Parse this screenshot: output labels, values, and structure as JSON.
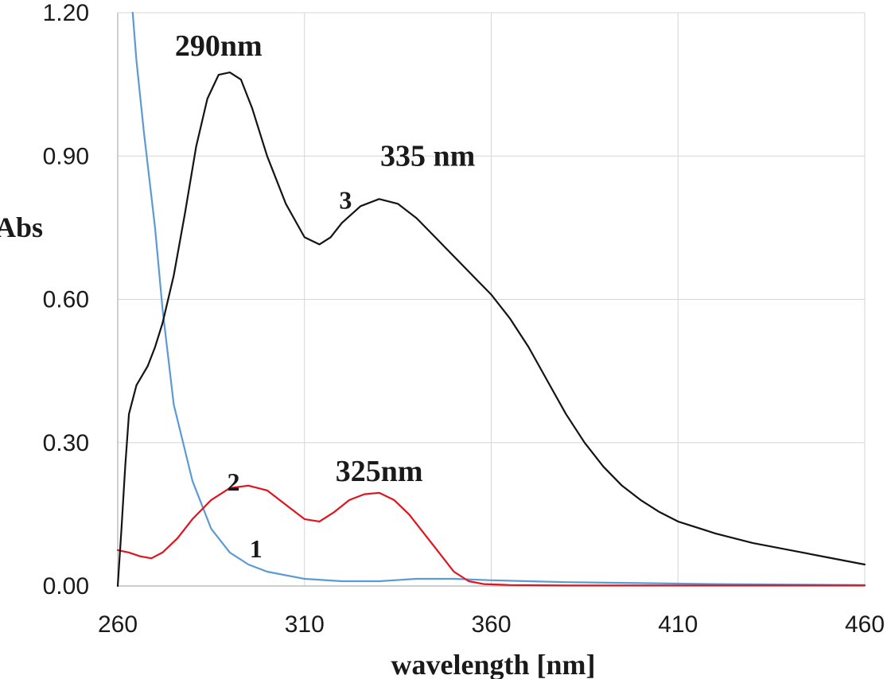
{
  "chart_data": {
    "type": "line",
    "title": "",
    "xlabel": "wavelength [nm]",
    "ylabel": "Abs",
    "xlim": [
      260,
      460
    ],
    "ylim": [
      0,
      1.2
    ],
    "x_ticks": [
      "260",
      "310",
      "360",
      "410",
      "460"
    ],
    "y_ticks": [
      "0.00",
      "0.30",
      "0.60",
      "0.90",
      "1.20"
    ],
    "grid": true,
    "colors": {
      "s1": "#5b9bd5",
      "s2": "#e0141e",
      "s3": "#141414"
    },
    "series": [
      {
        "label": "1",
        "color": "#5b9bd5",
        "x": [
          264,
          265,
          267,
          270,
          272,
          275,
          280,
          285,
          290,
          295,
          300,
          310,
          320,
          330,
          340,
          350,
          360,
          370,
          380,
          400,
          420,
          440,
          460
        ],
        "y": [
          1.2,
          1.1,
          0.95,
          0.75,
          0.58,
          0.38,
          0.22,
          0.12,
          0.07,
          0.045,
          0.03,
          0.015,
          0.01,
          0.01,
          0.015,
          0.015,
          0.012,
          0.01,
          0.008,
          0.006,
          0.004,
          0.003,
          0.002
        ]
      },
      {
        "label": "2",
        "color": "#e0141e",
        "x": [
          260,
          263,
          266,
          269,
          272,
          276,
          280,
          285,
          290,
          295,
          300,
          305,
          310,
          314,
          318,
          322,
          326,
          330,
          334,
          338,
          342,
          346,
          350,
          354,
          358,
          365,
          380,
          400,
          430,
          460
        ],
        "y": [
          0.075,
          0.07,
          0.062,
          0.058,
          0.07,
          0.1,
          0.14,
          0.18,
          0.205,
          0.21,
          0.2,
          0.17,
          0.14,
          0.135,
          0.155,
          0.18,
          0.192,
          0.195,
          0.18,
          0.15,
          0.11,
          0.07,
          0.03,
          0.01,
          0.004,
          0.002,
          0.001,
          0.001,
          0.001,
          0.001
        ]
      },
      {
        "label": "3",
        "color": "#141414",
        "x": [
          260,
          261,
          262,
          263,
          265,
          268,
          270,
          272,
          275,
          278,
          281,
          284,
          287,
          290,
          293,
          296,
          300,
          305,
          310,
          314,
          317,
          320,
          325,
          330,
          335,
          340,
          345,
          350,
          355,
          360,
          365,
          370,
          375,
          380,
          385,
          390,
          395,
          400,
          405,
          410,
          420,
          430,
          440,
          450,
          460
        ],
        "y": [
          0.0,
          0.12,
          0.25,
          0.36,
          0.42,
          0.46,
          0.5,
          0.55,
          0.65,
          0.78,
          0.92,
          1.02,
          1.07,
          1.075,
          1.06,
          1.0,
          0.9,
          0.8,
          0.73,
          0.715,
          0.73,
          0.76,
          0.795,
          0.81,
          0.8,
          0.77,
          0.73,
          0.69,
          0.65,
          0.61,
          0.56,
          0.5,
          0.43,
          0.36,
          0.3,
          0.25,
          0.21,
          0.18,
          0.155,
          0.135,
          0.11,
          0.09,
          0.075,
          0.06,
          0.045
        ]
      }
    ],
    "annotations": [
      {
        "text": "290nm",
        "x": 287,
        "y": 1.11,
        "size": 38
      },
      {
        "text": "335 nm",
        "x": 343,
        "y": 0.88,
        "size": 38
      },
      {
        "text": "3",
        "x": 321,
        "y": 0.79,
        "size": 32
      },
      {
        "text": "325nm",
        "x": 330,
        "y": 0.22,
        "size": 38
      },
      {
        "text": "2",
        "x": 291,
        "y": 0.2,
        "size": 32
      },
      {
        "text": "1",
        "x": 297,
        "y": 0.06,
        "size": 32
      }
    ]
  }
}
